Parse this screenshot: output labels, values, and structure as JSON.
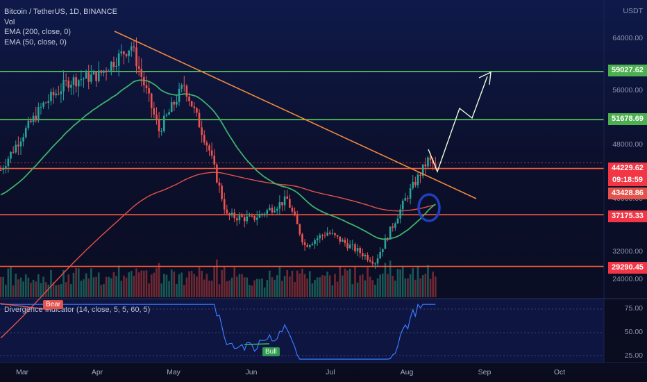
{
  "legend": {
    "symbol": "Bitcoin / TetherUS, 1D, BINANCE",
    "vol": "Vol",
    "ema200": "EMA (200, close, 0)",
    "ema50": "EMA (50, close, 0)"
  },
  "oscillator": {
    "label": "Divergence Indicator (14, close, 5, 5, 60, 5)",
    "bear_label": "Bear",
    "bull_label": "Bull",
    "levels": [
      "75.00",
      "50.00",
      "25.00"
    ]
  },
  "axis": {
    "currency": "USDT",
    "ticks": [
      "64000.00",
      "56000.00",
      "48000.00",
      "40000.00",
      "32000.00",
      "24000.00"
    ]
  },
  "price_tags": {
    "level1": "59027.62",
    "level2": "51678.69",
    "current": "44229.62",
    "countdown": "09:18:59",
    "ema50": "43428.86",
    "level3": "37175.33",
    "level4": "29290.45"
  },
  "colors": {
    "up": "#26a69a",
    "down": "#ef5350",
    "ema200": "#e4524b",
    "ema50": "#3bb36b",
    "trendline": "#f08a3c",
    "green_level": "#5ccf5f",
    "red_level": "#ff5a3c",
    "projection": "#e8ffd8",
    "circle": "#1f3fbf",
    "oscillator": "#3b7bff"
  },
  "chart_data": {
    "type": "candlestick",
    "title": "Bitcoin / TetherUS, 1D, BINANCE",
    "x_ticks": [
      "Mar",
      "Apr",
      "May",
      "Jun",
      "Jul",
      "Aug",
      "Sep",
      "Oct"
    ],
    "ylim": [
      24000,
      68000
    ],
    "levels": [
      59027.62,
      51678.69,
      44229.62,
      37175.33,
      29290.45
    ],
    "current_price": 44229.62,
    "ema50_value": 43428.86,
    "close_series": [
      {
        "month": "Mar-01",
        "close": 49000
      },
      {
        "month": "Mar-10",
        "close": 54000
      },
      {
        "month": "Mar-20",
        "close": 57500
      },
      {
        "month": "Apr-01",
        "close": 58500
      },
      {
        "month": "Apr-14",
        "close": 63000
      },
      {
        "month": "Apr-25",
        "close": 50000
      },
      {
        "month": "May-05",
        "close": 57000
      },
      {
        "month": "May-15",
        "close": 47000
      },
      {
        "month": "May-22",
        "close": 37000
      },
      {
        "month": "Jun-01",
        "close": 36500
      },
      {
        "month": "Jun-15",
        "close": 39500
      },
      {
        "month": "Jun-22",
        "close": 32500
      },
      {
        "month": "Jul-01",
        "close": 34500
      },
      {
        "month": "Jul-20",
        "close": 30000
      },
      {
        "month": "Aug-01",
        "close": 39500
      },
      {
        "month": "Aug-10",
        "close": 45500
      },
      {
        "month": "Aug-14",
        "close": 44229.62
      }
    ]
  }
}
